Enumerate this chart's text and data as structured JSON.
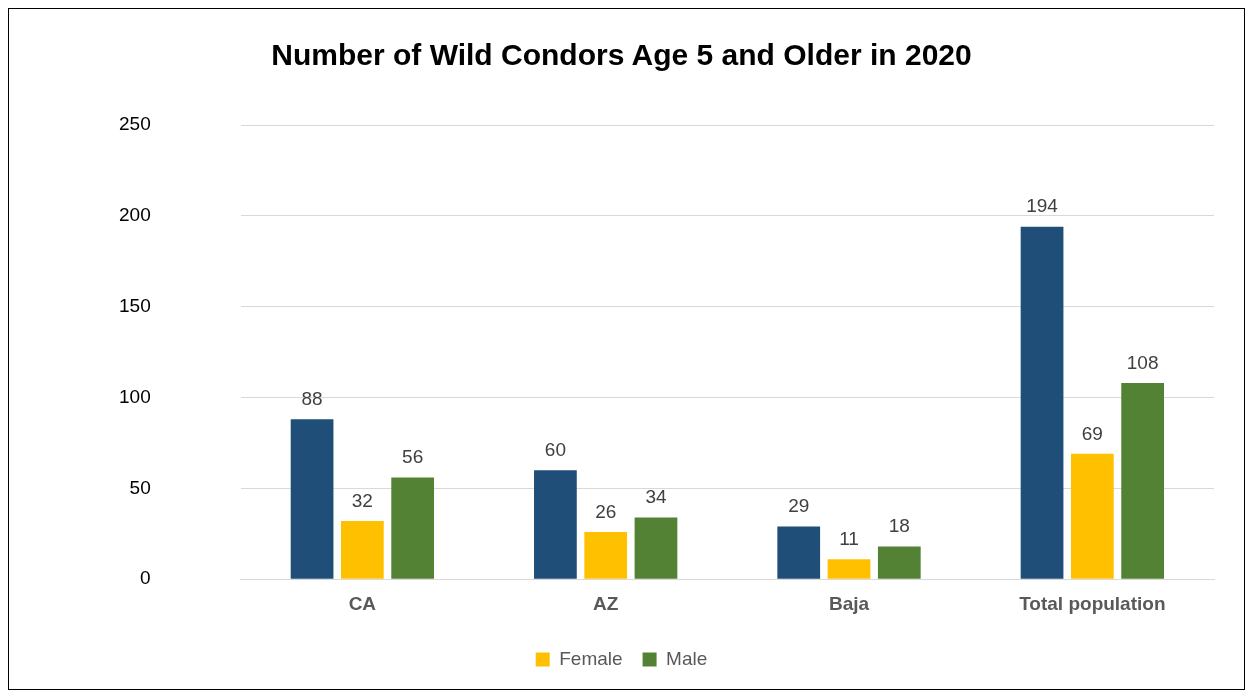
{
  "chart_data": {
    "type": "bar",
    "title": "Number of Wild Condors Age 5 and Older in 2020",
    "categories": [
      "CA",
      "AZ",
      "Baja",
      "Total population"
    ],
    "series": [
      {
        "color": "#1f4e79",
        "values": [
          88,
          60,
          29,
          194
        ]
      },
      {
        "name": "Female",
        "color": "#ffc000",
        "values": [
          32,
          26,
          11,
          69
        ]
      },
      {
        "name": "Male",
        "color": "#548235",
        "values": [
          56,
          34,
          18,
          108
        ]
      }
    ],
    "ylim": [
      0,
      250
    ],
    "yticks": [
      0,
      50,
      100,
      150,
      200,
      250
    ],
    "grid": "y",
    "legend": "bottom",
    "data_labels": true
  }
}
